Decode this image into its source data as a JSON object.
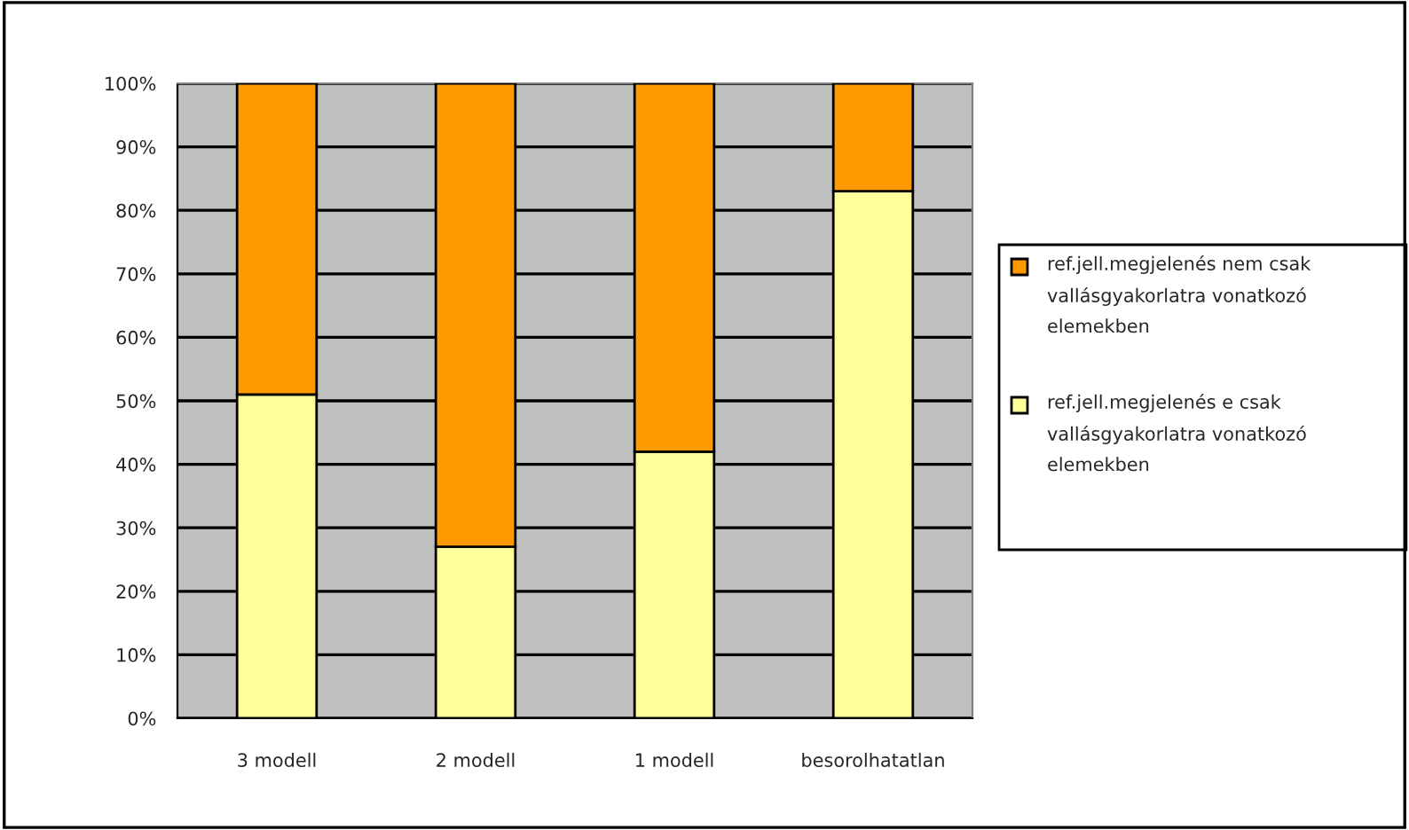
{
  "chart_data": {
    "type": "bar",
    "stacked": true,
    "categories": [
      "3 modell",
      "2 modell",
      "1 modell",
      "besorolhatatlan"
    ],
    "series": [
      {
        "name": "ref.jell.megjelenés e csak vallásgyakorlatra vonatkozó elemekben",
        "color": "#ffff99",
        "values": [
          51,
          27,
          42,
          83
        ]
      },
      {
        "name": "ref.jell.megjelenés nem csak vallásgyakorlatra vonatkozó elemekben",
        "color": "#ff9900",
        "values": [
          49,
          73,
          58,
          17
        ]
      }
    ],
    "ylim": [
      0,
      100
    ],
    "yticks": [
      {
        "value": 0,
        "label": "0%"
      },
      {
        "value": 10,
        "label": "10%"
      },
      {
        "value": 20,
        "label": "20%"
      },
      {
        "value": 30,
        "label": "30%"
      },
      {
        "value": 40,
        "label": "40%"
      },
      {
        "value": 50,
        "label": "50%"
      },
      {
        "value": 60,
        "label": "60%"
      },
      {
        "value": 70,
        "label": "70%"
      },
      {
        "value": 80,
        "label": "80%"
      },
      {
        "value": 90,
        "label": "90%"
      },
      {
        "value": 100,
        "label": "100%"
      }
    ],
    "grid": "y",
    "legend": "right"
  }
}
